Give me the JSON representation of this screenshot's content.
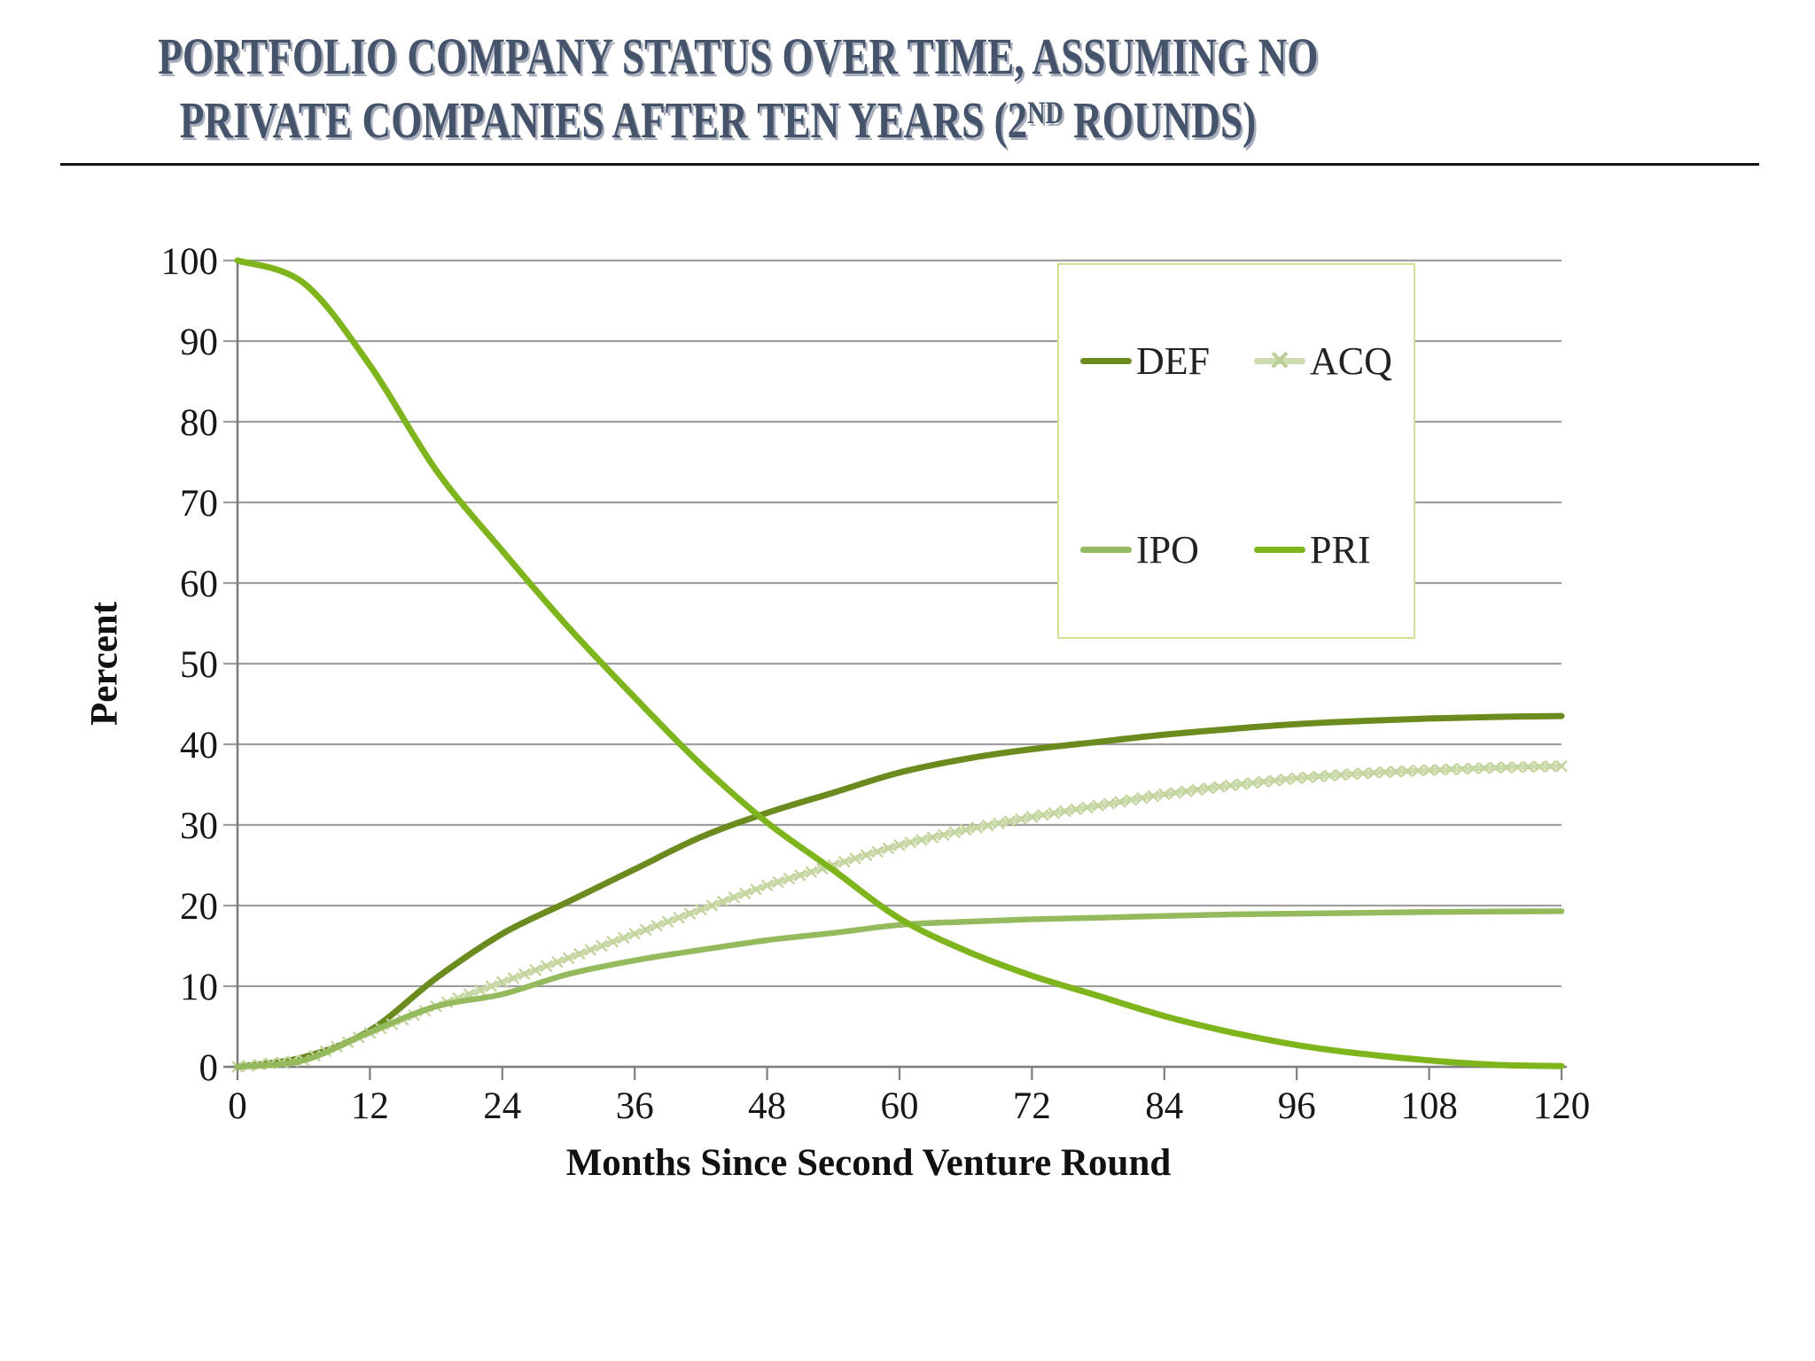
{
  "title": {
    "line1": "PORTFOLIO COMPANY STATUS OVER TIME, ASSUMING NO",
    "line2_pre": "PRIVATE COMPANIES AFTER TEN YEARS (2",
    "line2_sup": "ND",
    "line2_post": " ROUNDS)",
    "color": "#45546b",
    "shadow_color": "#a9aebc"
  },
  "axes": {
    "grid_color": "#9f9f9f",
    "axis_color": "#7e7e7e",
    "tick_label_color": "#161616"
  },
  "chart_data": {
    "type": "line",
    "title": "",
    "xlabel": "Months Since Second Venture Round",
    "ylabel": "Percent",
    "xlim": [
      0,
      120
    ],
    "ylim": [
      0,
      100
    ],
    "x_ticks": [
      0,
      12,
      24,
      36,
      48,
      60,
      72,
      84,
      96,
      108,
      120
    ],
    "y_ticks": [
      0,
      10,
      20,
      30,
      40,
      50,
      60,
      70,
      80,
      90,
      100
    ],
    "grid": "horizontal",
    "legend_position": "top-right-inside",
    "x": [
      0,
      6,
      12,
      18,
      24,
      30,
      36,
      42,
      48,
      54,
      60,
      66,
      72,
      78,
      84,
      90,
      96,
      102,
      108,
      114,
      120
    ],
    "series": [
      {
        "name": "DEF",
        "color": "#6b8b1f",
        "width": 7,
        "marker": "none",
        "values": [
          0,
          1.2,
          4.5,
          11,
          16.5,
          20.5,
          24.5,
          28.5,
          31.5,
          34,
          36.5,
          38.2,
          39.4,
          40.3,
          41.2,
          41.9,
          42.5,
          42.9,
          43.2,
          43.4,
          43.5
        ]
      },
      {
        "name": "ACQ",
        "color": "#cddcae",
        "width": 6,
        "marker": "x",
        "marker_color": "#c3d49f",
        "values": [
          0,
          0.8,
          4.2,
          7.5,
          10.5,
          13.5,
          16.5,
          19.5,
          22.5,
          25,
          27.5,
          29.4,
          31,
          32.4,
          33.8,
          34.9,
          35.8,
          36.4,
          36.8,
          37.1,
          37.3
        ]
      },
      {
        "name": "IPO",
        "color": "#95ba5d",
        "width": 6.5,
        "marker": "none",
        "values": [
          0,
          0.8,
          4.3,
          7.5,
          9,
          11.5,
          13.2,
          14.5,
          15.7,
          16.6,
          17.6,
          18,
          18.3,
          18.5,
          18.7,
          18.9,
          19,
          19.1,
          19.2,
          19.25,
          19.3
        ]
      },
      {
        "name": "PRI",
        "color": "#7eb41c",
        "width": 7,
        "marker": "none",
        "values": [
          100,
          97.2,
          87,
          74,
          64,
          54.5,
          45.8,
          37.5,
          30.3,
          24.4,
          18.4,
          14.4,
          11.3,
          8.8,
          6.3,
          4.3,
          2.7,
          1.6,
          0.8,
          0.25,
          0.1
        ]
      }
    ]
  },
  "legend": {
    "border_color": "#d2e093",
    "items": [
      {
        "label": "DEF",
        "color": "#6b8b1f",
        "marker": "none"
      },
      {
        "label": "ACQ",
        "color": "#cddcae",
        "marker": "x",
        "glyph": "×"
      },
      {
        "label": "IPO",
        "color": "#95ba5d",
        "marker": "none"
      },
      {
        "label": "PRI",
        "color": "#7eb41c",
        "marker": "none"
      }
    ]
  }
}
